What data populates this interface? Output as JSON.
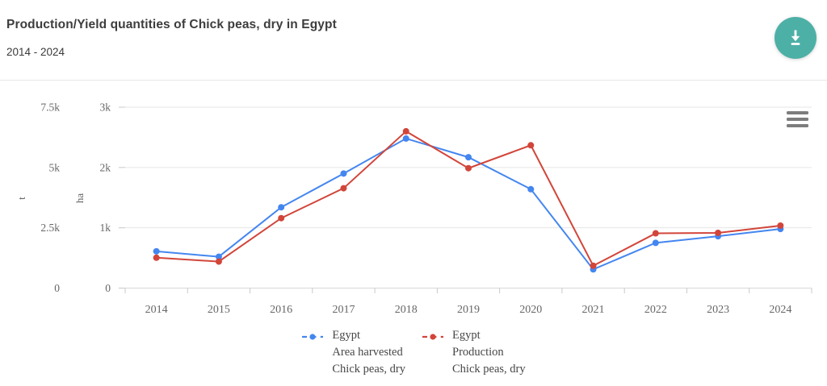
{
  "header": {
    "title": "Production/Yield quantities of Chick peas, dry in Egypt",
    "subtitle": "2014 - 2024"
  },
  "icons": {
    "download": "download-icon",
    "chart_menu": "hamburger-icon"
  },
  "colors": {
    "download_button": "#4DB0A6",
    "area_series": "#4486F0",
    "production_series": "#D2453A",
    "gridline": "#E6E6E6",
    "axis_line": "#D8D8D8",
    "axis_text": "#666666"
  },
  "chart_data": {
    "type": "line",
    "title": "Production/Yield quantities of Chick peas, dry in Egypt",
    "subtitle": "2014 - 2024",
    "categories": [
      "2014",
      "2015",
      "2016",
      "2017",
      "2018",
      "2019",
      "2020",
      "2021",
      "2022",
      "2023",
      "2024"
    ],
    "axes": {
      "t": {
        "label": "t",
        "ticks": [
          "0",
          "2.5k",
          "5k",
          "7.5k"
        ],
        "min": 0,
        "max": 7500
      },
      "ha": {
        "label": "ha",
        "ticks": [
          "0",
          "1k",
          "2k",
          "3k"
        ],
        "min": 0,
        "max": 3000
      }
    },
    "grid": "horizontal-only",
    "legend_position": "bottom",
    "series": [
      {
        "name": "Egypt Area harvested Chick peas, dry",
        "legend_lines": [
          "Egypt",
          "Area harvested",
          "Chick peas, dry"
        ],
        "axis": "ha",
        "unit": "ha",
        "color": "#4486F0",
        "values": [
          610,
          520,
          1340,
          1900,
          2480,
          2170,
          1640,
          310,
          750,
          860,
          980
        ]
      },
      {
        "name": "Egypt Production Chick peas, dry",
        "legend_lines": [
          "Egypt",
          "Production",
          "Chick peas, dry"
        ],
        "axis": "t",
        "unit": "t",
        "color": "#D2453A",
        "values": [
          1260,
          1100,
          2900,
          4140,
          6500,
          4970,
          5920,
          925,
          2270,
          2290,
          2590
        ]
      }
    ]
  }
}
